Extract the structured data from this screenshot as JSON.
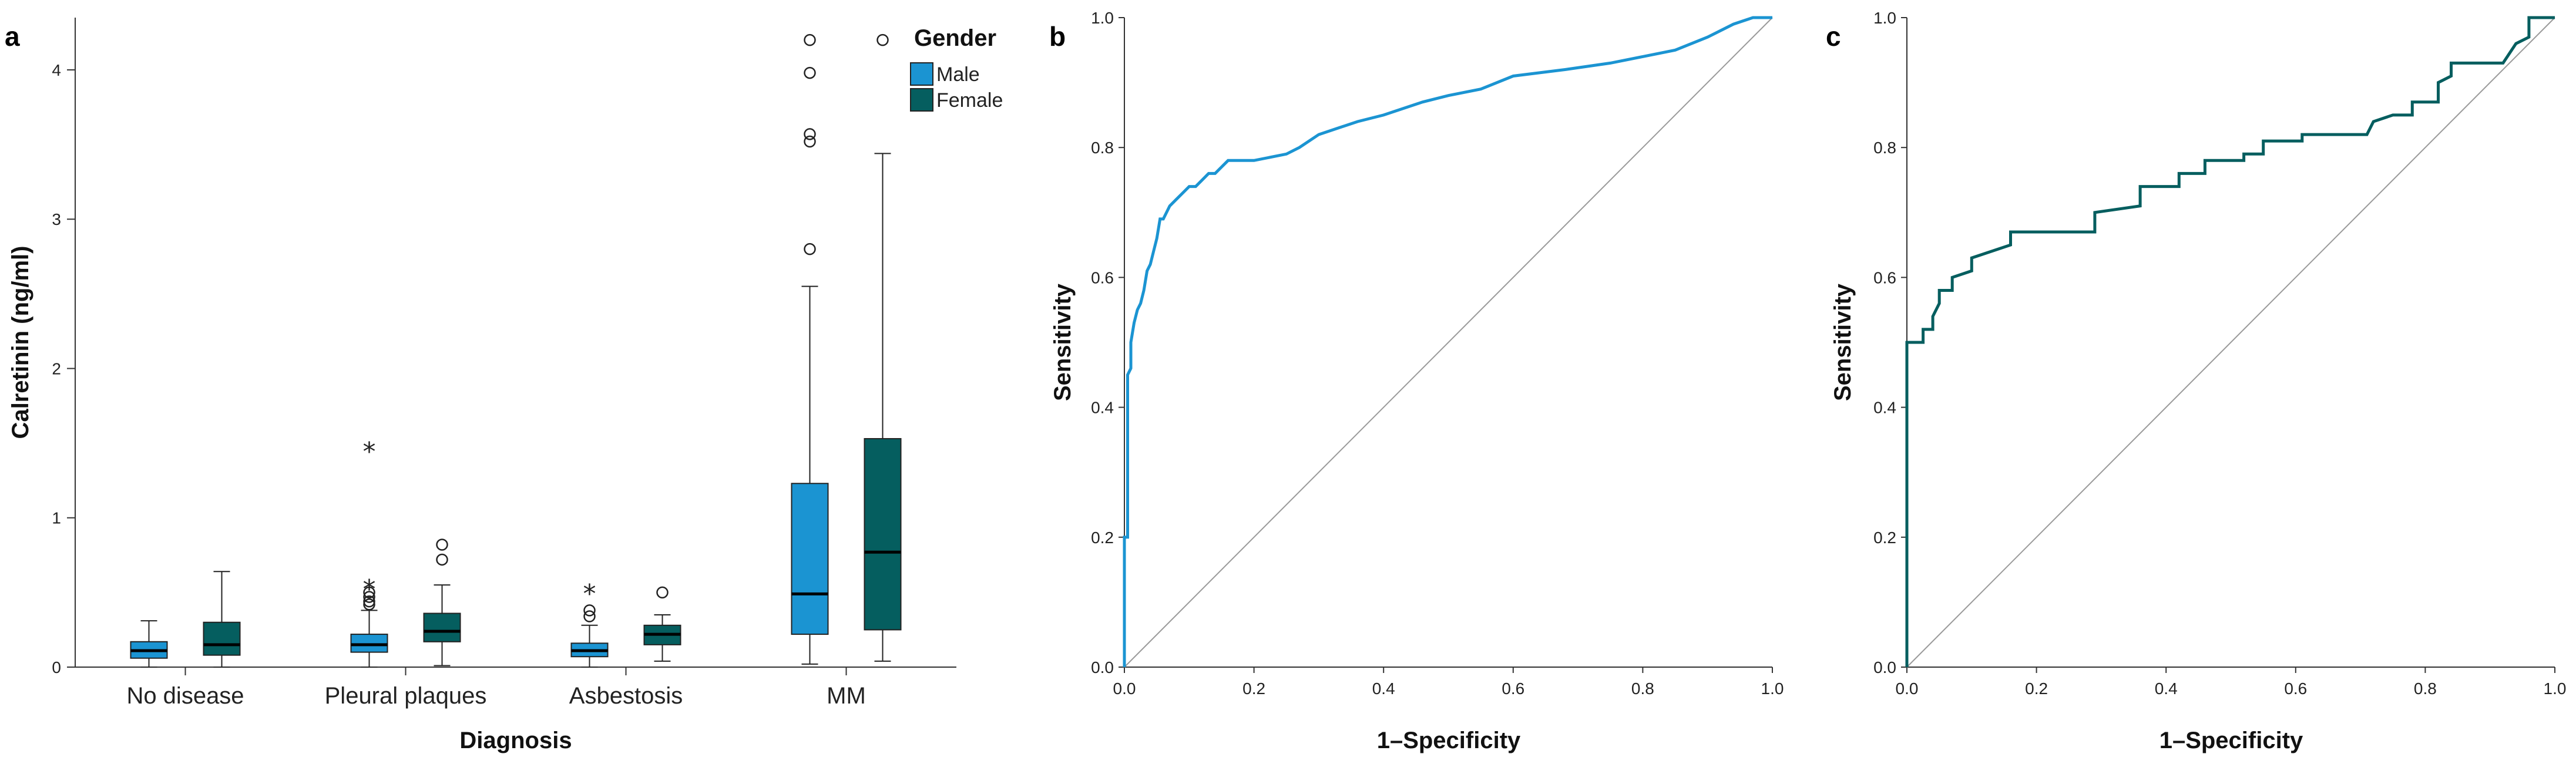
{
  "chart_data": [
    {
      "panel": "a",
      "type": "boxplot",
      "xlabel": "Diagnosis",
      "ylabel": "Calretinin (ng/ml)",
      "ylim": [
        0,
        4.35
      ],
      "yticks": [
        "0",
        "1",
        "2",
        "3",
        "4"
      ],
      "categories": [
        "No disease",
        "Pleural plaques",
        "Asbestosis",
        "MM"
      ],
      "legend": {
        "title": "Gender",
        "position": "top-right",
        "entries": [
          {
            "name": "Male",
            "color": "#1b94d2"
          },
          {
            "name": "Female",
            "color": "#055e5f"
          }
        ]
      },
      "series": [
        {
          "name": "Male",
          "color": "#1b94d2",
          "boxes": [
            {
              "category": "No disease",
              "whisker_low": 0.0,
              "q1": 0.06,
              "median": 0.11,
              "q3": 0.17,
              "whisker_high": 0.31,
              "outliers": [],
              "extremes": []
            },
            {
              "category": "Pleural plaques",
              "whisker_low": 0.0,
              "q1": 0.1,
              "median": 0.15,
              "q3": 0.22,
              "whisker_high": 0.38,
              "outliers": [
                0.42,
                0.44,
                0.47,
                0.5
              ],
              "extremes": [
                0.55,
                1.47
              ]
            },
            {
              "category": "Asbestosis",
              "whisker_low": 0.0,
              "q1": 0.07,
              "median": 0.11,
              "q3": 0.16,
              "whisker_high": 0.28,
              "outliers": [
                0.34,
                0.38
              ],
              "extremes": [
                0.52
              ]
            },
            {
              "category": "MM",
              "whisker_low": 0.02,
              "q1": 0.22,
              "median": 0.49,
              "q3": 1.23,
              "whisker_high": 2.55,
              "outliers": [
                2.8,
                3.52,
                3.57,
                3.98,
                4.2
              ],
              "extremes": []
            }
          ]
        },
        {
          "name": "Female",
          "color": "#055e5f",
          "boxes": [
            {
              "category": "No disease",
              "whisker_low": 0.0,
              "q1": 0.08,
              "median": 0.15,
              "q3": 0.3,
              "whisker_high": 0.64,
              "outliers": [],
              "extremes": []
            },
            {
              "category": "Pleural plaques",
              "whisker_low": 0.01,
              "q1": 0.17,
              "median": 0.24,
              "q3": 0.36,
              "whisker_high": 0.55,
              "outliers": [
                0.72,
                0.82
              ],
              "extremes": []
            },
            {
              "category": "Asbestosis",
              "whisker_low": 0.04,
              "q1": 0.15,
              "median": 0.22,
              "q3": 0.28,
              "whisker_high": 0.35,
              "outliers": [
                0.5
              ],
              "extremes": []
            },
            {
              "category": "MM",
              "whisker_low": 0.04,
              "q1": 0.25,
              "median": 0.77,
              "q3": 1.53,
              "whisker_high": 3.44,
              "outliers": [
                4.2
              ],
              "extremes": []
            }
          ]
        }
      ]
    },
    {
      "panel": "b",
      "type": "line",
      "title": "",
      "xlabel": "1–Specificity",
      "ylabel": "Sensitivity",
      "xlim": [
        0,
        1
      ],
      "ylim": [
        0,
        1
      ],
      "xticks": [
        "0.0",
        "0.2",
        "0.4",
        "0.6",
        "0.8",
        "1.0"
      ],
      "yticks": [
        "0.0",
        "0.2",
        "0.4",
        "0.6",
        "0.8",
        "1.0"
      ],
      "reference_line": true,
      "series": [
        {
          "name": "ROC",
          "color": "#1b94d2",
          "x": [
            0,
            0,
            0.005,
            0.005,
            0.01,
            0.01,
            0.015,
            0.02,
            0.025,
            0.03,
            0.035,
            0.04,
            0.045,
            0.05,
            0.055,
            0.06,
            0.065,
            0.07,
            0.08,
            0.09,
            0.1,
            0.11,
            0.12,
            0.13,
            0.14,
            0.15,
            0.16,
            0.17,
            0.18,
            0.2,
            0.25,
            0.27,
            0.3,
            0.33,
            0.36,
            0.4,
            0.46,
            0.5,
            0.55,
            0.6,
            0.68,
            0.75,
            0.8,
            0.85,
            0.9,
            0.94,
            0.97,
            1.0
          ],
          "y": [
            0,
            0.2,
            0.2,
            0.45,
            0.46,
            0.5,
            0.53,
            0.55,
            0.56,
            0.58,
            0.61,
            0.62,
            0.64,
            0.66,
            0.69,
            0.69,
            0.7,
            0.71,
            0.72,
            0.73,
            0.74,
            0.74,
            0.75,
            0.76,
            0.76,
            0.77,
            0.78,
            0.78,
            0.78,
            0.78,
            0.79,
            0.8,
            0.82,
            0.83,
            0.84,
            0.85,
            0.87,
            0.88,
            0.89,
            0.91,
            0.92,
            0.93,
            0.94,
            0.95,
            0.97,
            0.99,
            1.0,
            1.0
          ]
        }
      ]
    },
    {
      "panel": "c",
      "type": "line",
      "title": "",
      "xlabel": "1–Specificity",
      "ylabel": "Sensitivity",
      "xlim": [
        0,
        1
      ],
      "ylim": [
        0,
        1
      ],
      "xticks": [
        "0.0",
        "0.2",
        "0.4",
        "0.6",
        "0.8",
        "1.0"
      ],
      "yticks": [
        "0.0",
        "0.2",
        "0.4",
        "0.6",
        "0.8",
        "1.0"
      ],
      "reference_line": true,
      "series": [
        {
          "name": "ROC",
          "color": "#055e5f",
          "x": [
            0,
            0,
            0.025,
            0.025,
            0.04,
            0.04,
            0.05,
            0.05,
            0.07,
            0.07,
            0.1,
            0.1,
            0.16,
            0.16,
            0.29,
            0.29,
            0.36,
            0.36,
            0.38,
            0.42,
            0.42,
            0.46,
            0.46,
            0.52,
            0.52,
            0.55,
            0.55,
            0.61,
            0.61,
            0.71,
            0.72,
            0.75,
            0.78,
            0.78,
            0.82,
            0.82,
            0.84,
            0.84,
            0.89,
            0.92,
            0.94,
            0.96,
            0.96,
            1.0
          ],
          "y": [
            0,
            0.5,
            0.5,
            0.52,
            0.52,
            0.54,
            0.56,
            0.58,
            0.58,
            0.6,
            0.61,
            0.63,
            0.65,
            0.67,
            0.67,
            0.7,
            0.71,
            0.74,
            0.74,
            0.74,
            0.76,
            0.76,
            0.78,
            0.78,
            0.79,
            0.79,
            0.81,
            0.81,
            0.82,
            0.82,
            0.84,
            0.85,
            0.85,
            0.87,
            0.87,
            0.9,
            0.91,
            0.93,
            0.93,
            0.93,
            0.96,
            0.97,
            1.0,
            1.0
          ]
        }
      ]
    }
  ]
}
